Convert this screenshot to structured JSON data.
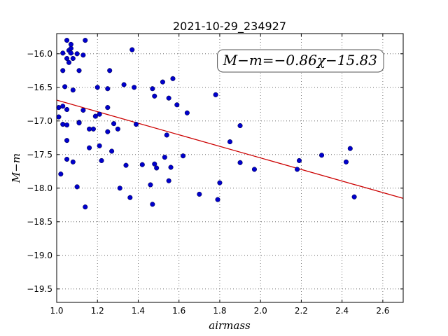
{
  "chart_data": {
    "type": "scatter",
    "title": "2021-10-29_234927",
    "xlabel": "airmass",
    "ylabel": "M−m",
    "xlim": [
      1.0,
      2.7
    ],
    "ylim": [
      -19.7,
      -15.7
    ],
    "y_inverted_display": true,
    "grid": true,
    "grid_style": "dotted",
    "x_ticks": [
      1.0,
      1.2,
      1.4,
      1.6,
      1.8,
      2.0,
      2.2,
      2.4,
      2.6
    ],
    "x_tick_labels": [
      "1.0",
      "1.2",
      "1.4",
      "1.6",
      "1.8",
      "2.0",
      "2.2",
      "2.4",
      "2.6"
    ],
    "y_ticks": [
      -16.0,
      -16.5,
      -17.0,
      -17.5,
      -18.0,
      -18.5,
      -19.0,
      -19.5
    ],
    "y_tick_labels": [
      "−16.0",
      "−16.5",
      "−17.0",
      "−17.5",
      "−18.0",
      "−18.5",
      "−19.0",
      "−19.5"
    ],
    "annotation": "M−m=−0.86χ−15.83",
    "annotation_position": "top-right",
    "fit_line": {
      "slope": -0.86,
      "intercept": -15.83,
      "color": "#cc0000"
    },
    "marker_color": "#0000cc",
    "points": [
      [
        1.01,
        -16.8
      ],
      [
        1.01,
        -16.94
      ],
      [
        1.02,
        -17.79
      ],
      [
        1.03,
        -16.25
      ],
      [
        1.03,
        -17.05
      ],
      [
        1.03,
        -16.78
      ],
      [
        1.03,
        -15.99
      ],
      [
        1.04,
        -16.49
      ],
      [
        1.05,
        -15.8
      ],
      [
        1.05,
        -16.83
      ],
      [
        1.05,
        -16.07
      ],
      [
        1.05,
        -17.06
      ],
      [
        1.05,
        -17.57
      ],
      [
        1.05,
        -17.29
      ],
      [
        1.06,
        -15.95
      ],
      [
        1.06,
        -16.13
      ],
      [
        1.07,
        -15.92
      ],
      [
        1.07,
        -15.86
      ],
      [
        1.07,
        -15.99
      ],
      [
        1.08,
        -16.54
      ],
      [
        1.08,
        -16.07
      ],
      [
        1.08,
        -17.61
      ],
      [
        1.1,
        -16.0
      ],
      [
        1.1,
        -17.98
      ],
      [
        1.11,
        -16.25
      ],
      [
        1.11,
        -17.02
      ],
      [
        1.11,
        -17.03
      ],
      [
        1.13,
        -16.02
      ],
      [
        1.13,
        -16.84
      ],
      [
        1.14,
        -15.8
      ],
      [
        1.14,
        -18.28
      ],
      [
        1.16,
        -17.12
      ],
      [
        1.16,
        -17.4
      ],
      [
        1.18,
        -17.12
      ],
      [
        1.19,
        -16.93
      ],
      [
        1.2,
        -16.5
      ],
      [
        1.21,
        -16.9
      ],
      [
        1.21,
        -17.37
      ],
      [
        1.22,
        -17.59
      ],
      [
        1.25,
        -16.52
      ],
      [
        1.25,
        -16.8
      ],
      [
        1.25,
        -17.16
      ],
      [
        1.26,
        -16.25
      ],
      [
        1.27,
        -17.45
      ],
      [
        1.28,
        -17.04
      ],
      [
        1.3,
        -17.12
      ],
      [
        1.31,
        -18.0
      ],
      [
        1.33,
        -16.46
      ],
      [
        1.34,
        -17.66
      ],
      [
        1.36,
        -18.14
      ],
      [
        1.37,
        -15.94
      ],
      [
        1.38,
        -16.5
      ],
      [
        1.39,
        -17.05
      ],
      [
        1.42,
        -17.65
      ],
      [
        1.46,
        -17.95
      ],
      [
        1.47,
        -16.52
      ],
      [
        1.47,
        -18.24
      ],
      [
        1.48,
        -16.63
      ],
      [
        1.48,
        -17.64
      ],
      [
        1.49,
        -17.7
      ],
      [
        1.52,
        -16.42
      ],
      [
        1.53,
        -17.54
      ],
      [
        1.54,
        -17.21
      ],
      [
        1.55,
        -16.66
      ],
      [
        1.55,
        -17.89
      ],
      [
        1.56,
        -17.69
      ],
      [
        1.57,
        -16.37
      ],
      [
        1.59,
        -16.76
      ],
      [
        1.62,
        -17.52
      ],
      [
        1.64,
        -16.88
      ],
      [
        1.7,
        -18.09
      ],
      [
        1.78,
        -16.61
      ],
      [
        1.79,
        -18.17
      ],
      [
        1.8,
        -17.92
      ],
      [
        1.85,
        -17.31
      ],
      [
        1.9,
        -17.62
      ],
      [
        1.9,
        -17.07
      ],
      [
        1.97,
        -17.72
      ],
      [
        2.18,
        -17.72
      ],
      [
        2.19,
        -17.59
      ],
      [
        2.3,
        -17.51
      ],
      [
        2.42,
        -17.61
      ],
      [
        2.44,
        -17.41
      ],
      [
        2.46,
        -18.13
      ]
    ]
  }
}
